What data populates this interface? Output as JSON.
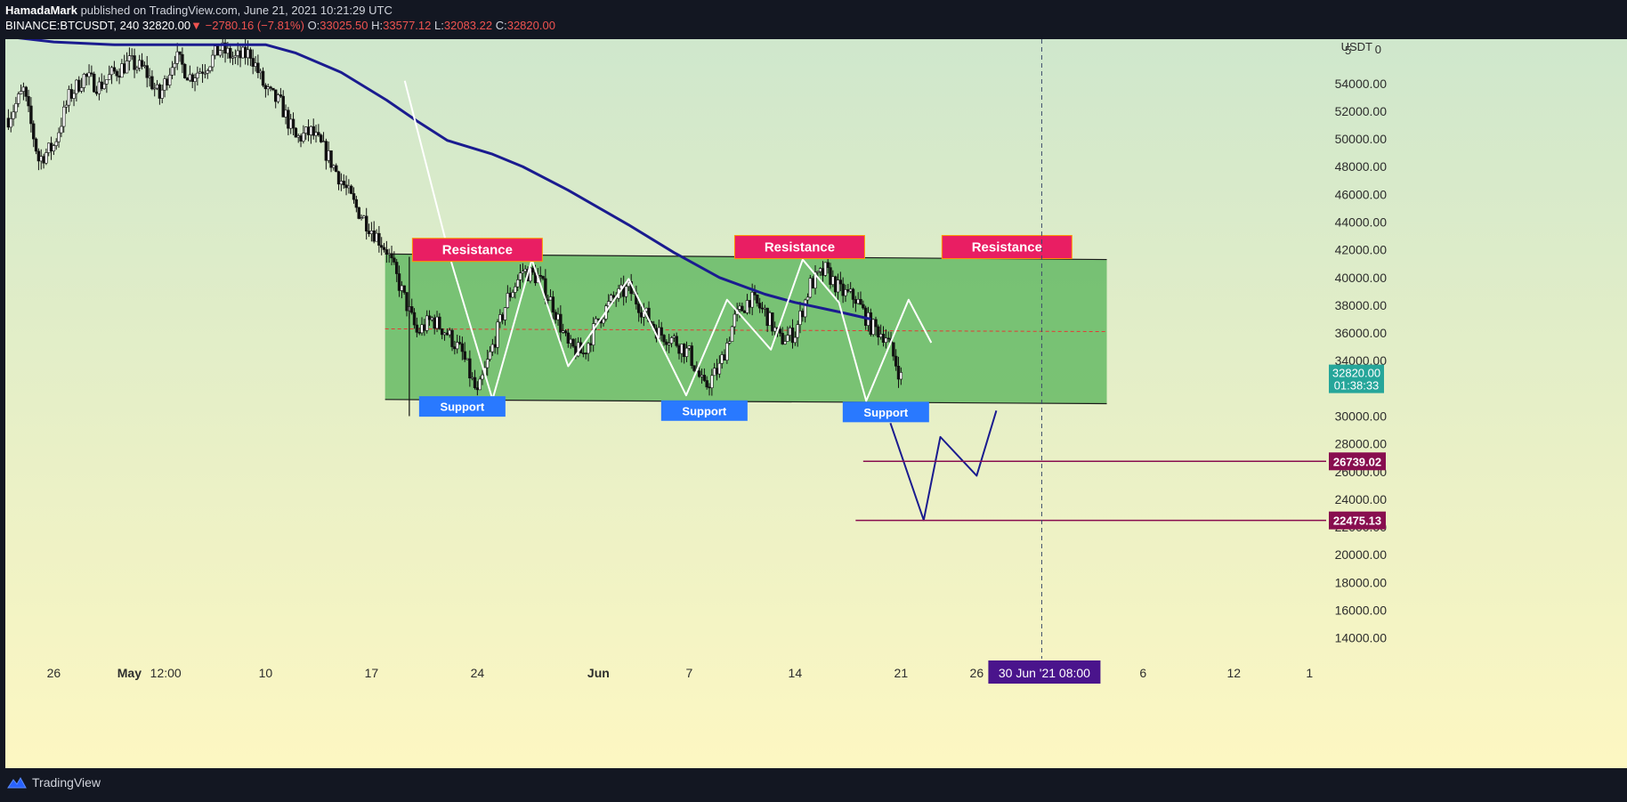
{
  "header": {
    "publisher": "HamadaMark",
    "published_text": "published on TradingView.com, June 21, 2021 10:21:29 UTC",
    "symbol": "BINANCE:BTCUSDT, 240",
    "last": "32820.00",
    "change": "−2780.16 (−7.81%)",
    "o_label": "O:",
    "o_value": "33025.50",
    "h_label": "H:",
    "h_value": "33577.12",
    "l_label": "L:",
    "l_value": "32083.22",
    "c_label": "C:",
    "c_value": "32820.00"
  },
  "footer": {
    "brand": "TradingView",
    "logo_icon": "tradingview-logo-icon"
  },
  "chart_data": {
    "type": "candlestick",
    "currency": "USDT",
    "ylim": [
      12500,
      57200
    ],
    "y_ticks": [
      14000,
      16000,
      18000,
      20000,
      22000,
      24000,
      26000,
      28000,
      30000,
      32000,
      34000,
      36000,
      38000,
      40000,
      42000,
      44000,
      46000,
      48000,
      50000,
      52000,
      54000
    ],
    "y_tick_labels": [
      "14000.00",
      "16000.00",
      "18000.00",
      "20000.00",
      "22000.00",
      "24000.00",
      "26000.00",
      "28000.00",
      "30000.00",
      "",
      "34000.00",
      "36000.00",
      "38000.00",
      "40000.00",
      "42000.00",
      "44000.00",
      "46000.00",
      "48000.00",
      "50000.00",
      "52000.00",
      "54000.00"
    ],
    "y_top_tick_label": "5",
    "x_ticks": [
      {
        "label": "26",
        "day": 26
      },
      {
        "label": "May",
        "day": 31,
        "bold": true
      },
      {
        "label": "12:00",
        "day": 33.4
      },
      {
        "label": "10",
        "day": 40
      },
      {
        "label": "17",
        "day": 47
      },
      {
        "label": "24",
        "day": 54
      },
      {
        "label": "Jun",
        "day": 62,
        "bold": true
      },
      {
        "label": "7",
        "day": 68
      },
      {
        "label": "14",
        "day": 75
      },
      {
        "label": "21",
        "day": 82
      },
      {
        "label": "26",
        "day": 87
      },
      {
        "label": "6",
        "day": 98
      },
      {
        "label": "12",
        "day": 104
      },
      {
        "label": "1",
        "day": 109
      }
    ],
    "x_range_days": [
      22.8,
      110.1
    ],
    "crosshair": {
      "day": 91.3,
      "label": "30 Jun '21   08:00"
    },
    "last_price": {
      "value": 32820,
      "label": "32820.00",
      "countdown": "01:38:33",
      "color": "#26a69a"
    },
    "levels": [
      {
        "value": 26739.02,
        "label": "26739.02",
        "from_day": 79.5,
        "color": "#880e4f"
      },
      {
        "value": 22475.13,
        "label": "22475.13",
        "from_day": 79.0,
        "color": "#880e4f"
      }
    ],
    "price_path": [
      [
        23,
        51500
      ],
      [
        24,
        53500
      ],
      [
        25,
        48500
      ],
      [
        26,
        49500
      ],
      [
        27,
        53000
      ],
      [
        28,
        54500
      ],
      [
        29,
        53800
      ],
      [
        30,
        54800
      ],
      [
        31,
        55500
      ],
      [
        32,
        55000
      ],
      [
        33,
        53000
      ],
      [
        34,
        56000
      ],
      [
        35,
        54500
      ],
      [
        36,
        55200
      ],
      [
        37,
        56500
      ],
      [
        38,
        55800
      ],
      [
        39,
        56200
      ],
      [
        40,
        53500
      ],
      [
        41,
        52500
      ],
      [
        42,
        50000
      ],
      [
        43,
        50500
      ],
      [
        44,
        49000
      ],
      [
        45,
        47000
      ],
      [
        46,
        45000
      ],
      [
        47,
        43500
      ],
      [
        48,
        42000
      ],
      [
        49,
        39000
      ],
      [
        50,
        36000
      ],
      [
        51,
        37000
      ],
      [
        52,
        36000
      ],
      [
        53,
        34500
      ],
      [
        54,
        31500
      ],
      [
        55,
        35000
      ],
      [
        56,
        38500
      ],
      [
        57,
        40500
      ],
      [
        58,
        40000
      ],
      [
        59,
        38000
      ],
      [
        60,
        35000
      ],
      [
        61,
        34500
      ],
      [
        62,
        37000
      ],
      [
        63,
        38500
      ],
      [
        64,
        39200
      ],
      [
        65,
        37500
      ],
      [
        66,
        36000
      ],
      [
        67,
        35500
      ],
      [
        68,
        34500
      ],
      [
        69,
        32000
      ],
      [
        70,
        33500
      ],
      [
        71,
        37000
      ],
      [
        72,
        38500
      ],
      [
        73,
        37500
      ],
      [
        74,
        35500
      ],
      [
        75,
        36000
      ],
      [
        76,
        39500
      ],
      [
        77,
        40500
      ],
      [
        78,
        39000
      ],
      [
        79,
        38500
      ],
      [
        80,
        36500
      ],
      [
        81,
        35800
      ],
      [
        82,
        32800
      ]
    ],
    "series": [
      {
        "name": "",
        "type": "moving-average",
        "color": "#1a1b8f",
        "points": [
          [
            22.8,
            57400
          ],
          [
            26,
            57000
          ],
          [
            30,
            56800
          ],
          [
            36,
            56800
          ],
          [
            40,
            56800
          ],
          [
            42,
            56200
          ],
          [
            45,
            54800
          ],
          [
            48,
            52800
          ],
          [
            50,
            51300
          ],
          [
            52,
            49900
          ],
          [
            55,
            48900
          ],
          [
            57,
            48000
          ],
          [
            60,
            46300
          ],
          [
            64,
            43800
          ],
          [
            67,
            41800
          ],
          [
            70,
            40000
          ],
          [
            73,
            38800
          ],
          [
            75,
            38200
          ],
          [
            78,
            37500
          ],
          [
            80,
            37000
          ]
        ]
      }
    ],
    "channel": {
      "color": "#4caf50",
      "top": [
        [
          47.9,
          41700
        ],
        [
          95.6,
          41300
        ]
      ],
      "bottom": [
        [
          47.9,
          31200
        ],
        [
          95.6,
          30900
        ]
      ],
      "mid": [
        [
          47.9,
          36300
        ],
        [
          95.6,
          36100
        ]
      ]
    },
    "zigzag": [
      [
        49.2,
        54200
      ],
      [
        52.2,
        41400
      ],
      [
        55.0,
        31200
      ],
      [
        57.6,
        41300
      ],
      [
        60.0,
        33600
      ],
      [
        64.0,
        39900
      ],
      [
        67.8,
        31500
      ],
      [
        70.5,
        38400
      ],
      [
        73.4,
        34800
      ],
      [
        75.5,
        41300
      ],
      [
        77.9,
        38200
      ],
      [
        79.7,
        31100
      ],
      [
        82.5,
        38400
      ],
      [
        84.0,
        35300
      ]
    ],
    "forecast": [
      [
        81.3,
        29500
      ],
      [
        83.5,
        22500
      ],
      [
        84.6,
        28500
      ],
      [
        87.0,
        25700
      ],
      [
        88.3,
        30400
      ]
    ],
    "labels": [
      {
        "text": "Resistance",
        "day": 54.0,
        "value": 42000,
        "kind": "resistance"
      },
      {
        "text": "Resistance",
        "day": 75.3,
        "value": 42200,
        "kind": "resistance"
      },
      {
        "text": "Resistance",
        "day": 89.0,
        "value": 42200,
        "kind": "resistance"
      },
      {
        "text": "Support",
        "day": 53.0,
        "value": 30700,
        "kind": "support"
      },
      {
        "text": "Support",
        "day": 69.0,
        "value": 30400,
        "kind": "support"
      },
      {
        "text": "Support",
        "day": 81.0,
        "value": 30300,
        "kind": "support"
      }
    ],
    "colors": {
      "resistance": "#e91e63",
      "support": "#2979ff",
      "bg_top": "#cfe7cc",
      "bg_bottom": "#fdf7c2"
    }
  }
}
